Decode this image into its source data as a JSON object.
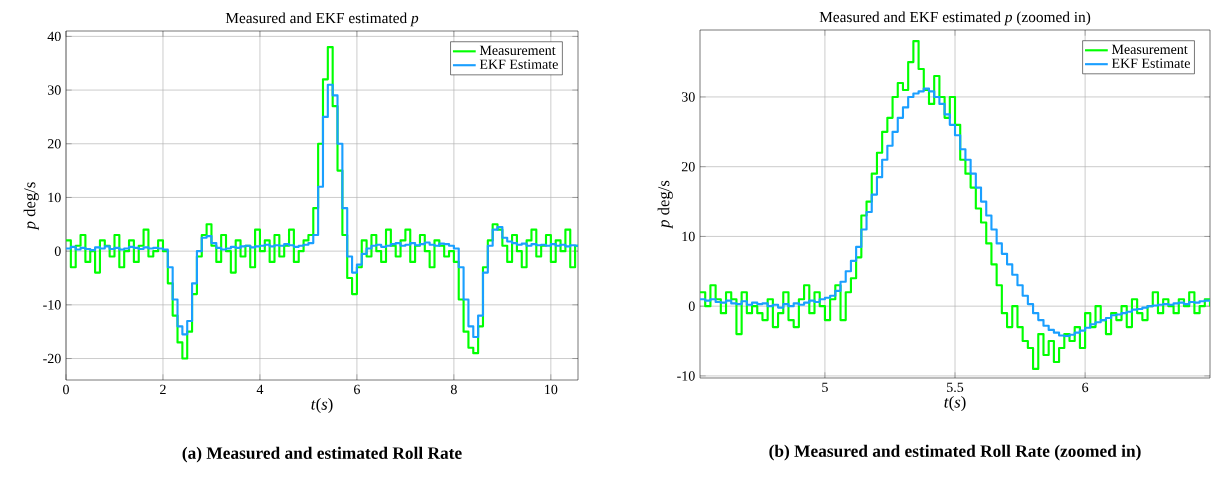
{
  "chart_data": [
    {
      "type": "step",
      "title": "Measured and EKF estimated *p*",
      "xlabel": "*t*(*s*)",
      "ylabel": "*p* deg/s",
      "annotations": [
        "(a) Measured and estimated Roll Rate"
      ],
      "x": [
        0,
        0.1,
        0.2,
        0.3,
        0.4,
        0.5,
        0.6,
        0.7,
        0.8,
        0.9,
        1.0,
        1.1,
        1.2,
        1.3,
        1.4,
        1.5,
        1.6,
        1.7,
        1.8,
        1.9,
        2.0,
        2.1,
        2.2,
        2.3,
        2.4,
        2.5,
        2.6,
        2.7,
        2.8,
        2.9,
        3.0,
        3.1,
        3.2,
        3.3,
        3.4,
        3.5,
        3.6,
        3.7,
        3.8,
        3.9,
        4.0,
        4.1,
        4.2,
        4.3,
        4.4,
        4.5,
        4.6,
        4.7,
        4.8,
        4.9,
        5.0,
        5.1,
        5.2,
        5.3,
        5.4,
        5.5,
        5.6,
        5.7,
        5.8,
        5.9,
        6.0,
        6.1,
        6.2,
        6.3,
        6.4,
        6.5,
        6.6,
        6.7,
        6.8,
        6.9,
        7.0,
        7.1,
        7.2,
        7.3,
        7.4,
        7.5,
        7.6,
        7.7,
        7.8,
        7.9,
        8.0,
        8.1,
        8.2,
        8.3,
        8.4,
        8.5,
        8.6,
        8.7,
        8.8,
        8.9,
        9.0,
        9.1,
        9.2,
        9.3,
        9.4,
        9.5,
        9.6,
        9.7,
        9.8,
        9.9,
        10.0,
        10.1,
        10.2,
        10.3,
        10.4,
        10.5,
        10.56
      ],
      "series": [
        {
          "name": "Measurement",
          "color": "#00ff00",
          "values": [
            2,
            -3,
            1,
            3,
            -2,
            0,
            -4,
            2,
            1,
            -1,
            3,
            -3,
            0,
            2,
            -2,
            1,
            4,
            -1,
            0,
            2,
            0,
            -6,
            -12,
            -17,
            -20,
            -15,
            -8,
            -1,
            3,
            5,
            1,
            -2,
            3,
            0,
            -4,
            2,
            -1,
            1,
            -3,
            4,
            0,
            2,
            -2,
            3,
            -1,
            1,
            4,
            -2,
            0,
            2,
            3,
            8,
            20,
            32,
            38,
            27,
            15,
            3,
            -5,
            -8,
            -3,
            2,
            -1,
            3,
            0,
            -2,
            4,
            1,
            -1,
            2,
            4,
            -2,
            1,
            3,
            0,
            -3,
            2,
            1,
            -1,
            0,
            -2,
            -9,
            -15,
            -18,
            -19,
            -14,
            -3,
            2,
            5,
            4,
            1,
            -2,
            3,
            0,
            -3,
            2,
            4,
            -1,
            1,
            3,
            -2,
            2,
            0,
            4,
            -3,
            1,
            1
          ]
        },
        {
          "name": "EKF Estimate",
          "color": "#1a9fff",
          "values": [
            0.5,
            0.8,
            0.3,
            0.6,
            0.4,
            0.2,
            0.7,
            0.5,
            0.9,
            0.4,
            0.6,
            0.3,
            0.5,
            0.8,
            0.6,
            0.4,
            0.7,
            0.5,
            0.6,
            0.5,
            0.3,
            -3,
            -9,
            -14,
            -15.5,
            -13,
            -6,
            0,
            2.5,
            2.8,
            1.5,
            0.6,
            0.3,
            0.5,
            0.8,
            0.6,
            0.9,
            1,
            0.7,
            0.9,
            1,
            1.2,
            0.9,
            1.1,
            1,
            1.3,
            1.1,
            0.8,
            1,
            1.2,
            1.5,
            3,
            12,
            25,
            31,
            29,
            20,
            8,
            -1,
            -4,
            -2.5,
            -0.5,
            0.5,
            1,
            1.2,
            0.8,
            1,
            1.3,
            1.5,
            1,
            1.2,
            1.5,
            1.1,
            1.3,
            1.6,
            1.2,
            1,
            1.4,
            1.3,
            1,
            0.5,
            -3,
            -9,
            -14,
            -16,
            -12,
            -4,
            1,
            4,
            4.5,
            2.5,
            1.8,
            1.5,
            1.2,
            1.4,
            1,
            1.3,
            1.1,
            1.2,
            1,
            1.3,
            1,
            1.2,
            0.9,
            1.1,
            1,
            1
          ]
        }
      ],
      "xlim": [
        0,
        10.56
      ],
      "ylim": [
        -24,
        41
      ],
      "xticks": [
        0,
        2,
        4,
        6,
        8,
        10
      ],
      "yticks": [
        -20,
        -10,
        0,
        10,
        20,
        30,
        40
      ],
      "grid": true,
      "legend": "top right",
      "line_style": "solid"
    },
    {
      "type": "step",
      "title": "Measured and EKF estimated *p* (zoomed in)",
      "xlabel": "*t*(*s*)",
      "ylabel": "*p* deg/s",
      "annotations": [
        "(b) Measured and estimated Roll Rate (zoomed in)"
      ],
      "x": [
        4.52,
        4.54,
        4.56,
        4.58,
        4.6,
        4.62,
        4.64,
        4.66,
        4.68,
        4.7,
        4.72,
        4.74,
        4.76,
        4.78,
        4.8,
        4.82,
        4.84,
        4.86,
        4.88,
        4.9,
        4.92,
        4.94,
        4.96,
        4.98,
        5.0,
        5.02,
        5.04,
        5.06,
        5.08,
        5.1,
        5.12,
        5.14,
        5.16,
        5.18,
        5.2,
        5.22,
        5.24,
        5.26,
        5.28,
        5.3,
        5.32,
        5.34,
        5.36,
        5.38,
        5.4,
        5.42,
        5.44,
        5.46,
        5.48,
        5.5,
        5.52,
        5.54,
        5.56,
        5.58,
        5.6,
        5.62,
        5.64,
        5.66,
        5.68,
        5.7,
        5.72,
        5.74,
        5.76,
        5.78,
        5.8,
        5.82,
        5.84,
        5.86,
        5.88,
        5.9,
        5.92,
        5.94,
        5.96,
        5.98,
        6.0,
        6.02,
        6.04,
        6.06,
        6.08,
        6.1,
        6.12,
        6.14,
        6.16,
        6.18,
        6.2,
        6.22,
        6.24,
        6.26,
        6.28,
        6.3,
        6.32,
        6.34,
        6.36,
        6.38,
        6.4,
        6.42,
        6.44,
        6.46,
        6.48
      ],
      "series": [
        {
          "name": "Measurement",
          "color": "#00ff00",
          "values": [
            2,
            0,
            3,
            1,
            -1,
            2,
            1,
            -4,
            2,
            -1,
            0,
            -1,
            -2,
            1,
            -3,
            -1,
            2,
            -2,
            -3,
            1,
            3,
            -1,
            2,
            0,
            -2,
            1,
            3,
            -2,
            2,
            4,
            7,
            13,
            15,
            19,
            22,
            25,
            27,
            30,
            32,
            31,
            35,
            38,
            34,
            31,
            29,
            33,
            30,
            27,
            30,
            26,
            21,
            19,
            17,
            14,
            12,
            9,
            6,
            3,
            -1,
            -3,
            0,
            -3,
            -5,
            -6,
            -9,
            -4,
            -7,
            -5,
            -8,
            -6,
            -4,
            -5,
            -3,
            -6,
            -1,
            -3,
            0,
            -2,
            -4,
            -1,
            -2,
            0,
            -3,
            1,
            -1,
            -2,
            0,
            2,
            -1,
            1,
            0,
            -1,
            1,
            0,
            2,
            -1,
            0,
            1,
            0
          ]
        },
        {
          "name": "EKF Estimate",
          "color": "#1a9fff",
          "values": [
            1,
            0.8,
            1,
            0.6,
            0.5,
            0.8,
            0.4,
            0.3,
            0.7,
            0.2,
            0.5,
            0.3,
            0.4,
            0,
            0.2,
            -0.2,
            0.3,
            0,
            0.4,
            0.2,
            0.5,
            0.8,
            0.6,
            1,
            1.2,
            1.5,
            2.2,
            3.5,
            5,
            6.5,
            8.5,
            11,
            13.5,
            16,
            18.5,
            21,
            23,
            25,
            27,
            28.5,
            30,
            30.5,
            30.8,
            31.2,
            30.8,
            30,
            29,
            27.5,
            26,
            24.5,
            22.5,
            21,
            19,
            17,
            15,
            13,
            11,
            9,
            7.5,
            6,
            4.5,
            3,
            1.5,
            0.3,
            -1,
            -2,
            -2.8,
            -3.4,
            -3.8,
            -4.2,
            -4.3,
            -4.1,
            -3.8,
            -3.5,
            -3.1,
            -2.6,
            -2.3,
            -2,
            -1.7,
            -1.3,
            -1.2,
            -1,
            -0.8,
            -0.5,
            -0.4,
            -0.2,
            0,
            0.1,
            0.2,
            0.3,
            0.2,
            0.4,
            0.5,
            0.3,
            0.6,
            0.5,
            0.7,
            0.8,
            0.8
          ]
        }
      ],
      "xlim": [
        4.52,
        6.48
      ],
      "ylim": [
        -10.3,
        39.6
      ],
      "xticks": [
        5,
        5.5,
        6
      ],
      "yticks": [
        -10,
        0,
        10,
        20,
        30
      ],
      "grid": true,
      "legend": "top right",
      "line_style": "solid"
    }
  ]
}
